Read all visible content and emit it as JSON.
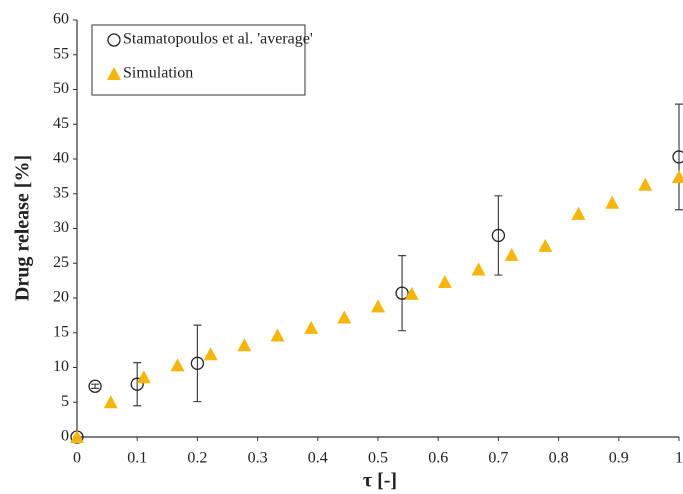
{
  "chart_data": {
    "type": "scatter",
    "x_label": "τ [-]",
    "y_label": "Drug release [%]",
    "xlim": [
      0,
      1
    ],
    "ylim": [
      0,
      60
    ],
    "xticks": [
      0,
      0.1,
      0.2,
      0.3,
      0.4,
      0.5,
      0.6,
      0.7,
      0.8,
      0.9,
      1
    ],
    "yticks": [
      0,
      5,
      10,
      15,
      20,
      25,
      30,
      35,
      40,
      45,
      50,
      55,
      60
    ],
    "grid": false,
    "legend": "upper left",
    "series": [
      {
        "name": "Stamatopoulos et al. 'average'",
        "color": "#222222",
        "marker": "circle",
        "x": [
          0,
          0.03,
          0.1,
          0.2,
          0.54,
          0.7,
          1
        ],
        "values": [
          0,
          7.3,
          7.6,
          10.6,
          20.7,
          29.0,
          40.3
        ],
        "errors": [
          0,
          0.3,
          3.1,
          5.5,
          5.4,
          5.7,
          7.6
        ]
      },
      {
        "name": "Simulation",
        "color": "#f5b50a",
        "marker": "triangle",
        "x": [
          0,
          0.056,
          0.111,
          0.167,
          0.222,
          0.278,
          0.333,
          0.389,
          0.444,
          0.5,
          0.556,
          0.611,
          0.667,
          0.722,
          0.778,
          0.833,
          0.889,
          0.944,
          1
        ],
        "values": [
          0,
          5.0,
          8.6,
          10.3,
          11.9,
          13.2,
          14.6,
          15.7,
          17.2,
          18.8,
          20.6,
          22.3,
          24.1,
          26.2,
          27.5,
          32.1,
          33.7,
          36.3,
          37.4
        ]
      }
    ]
  }
}
